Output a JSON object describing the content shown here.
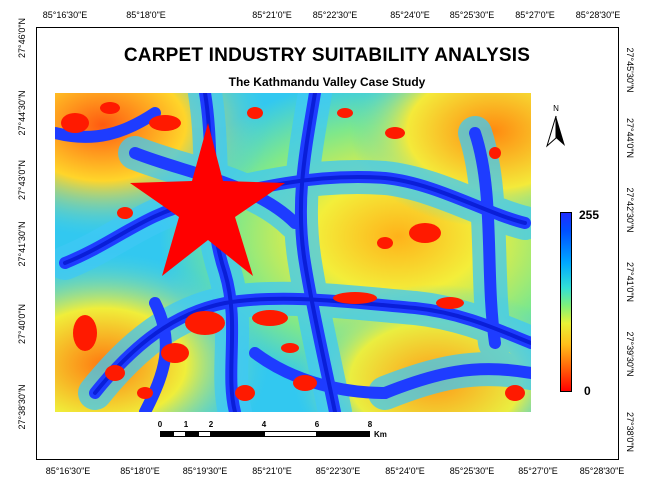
{
  "title": "CARPET INDUSTRY SUITABILITY ANALYSIS",
  "subtitle": "The Kathmandu Valley Case Study",
  "longitude_labels": [
    "85°16'30\"E",
    "85°18'0\"E",
    "85°19'30\"E",
    "85°21'0\"E",
    "85°22'30\"E",
    "85°24'0\"E",
    "85°25'30\"E",
    "85°27'0\"E",
    "85°28'30\"E"
  ],
  "latitude_labels_left": [
    "27°46'0\"N",
    "27°44'30\"N",
    "27°43'0\"N",
    "27°41'30\"N",
    "27°40'0\"N",
    "27°38'30\"N"
  ],
  "latitude_labels_right": [
    "27°45'30\"N",
    "27°44'0\"N",
    "27°42'30\"N",
    "27°41'0\"N",
    "27°39'30\"N",
    "27°38'0\"N"
  ],
  "north_arrow": {
    "label": "N",
    "icon": "north-arrow-icon"
  },
  "legend": {
    "max": "255",
    "min": "0"
  },
  "scale_bar": {
    "numbers": [
      "0",
      "1",
      "2",
      "4",
      "6",
      "8"
    ],
    "unit": "Km"
  },
  "map_symbol": {
    "icon": "star-icon",
    "color": "#ff0000"
  },
  "colors": {
    "high": "#1f2dff",
    "mid": "#e9f236",
    "low": "#ff0000",
    "water": "#00a9ff"
  }
}
